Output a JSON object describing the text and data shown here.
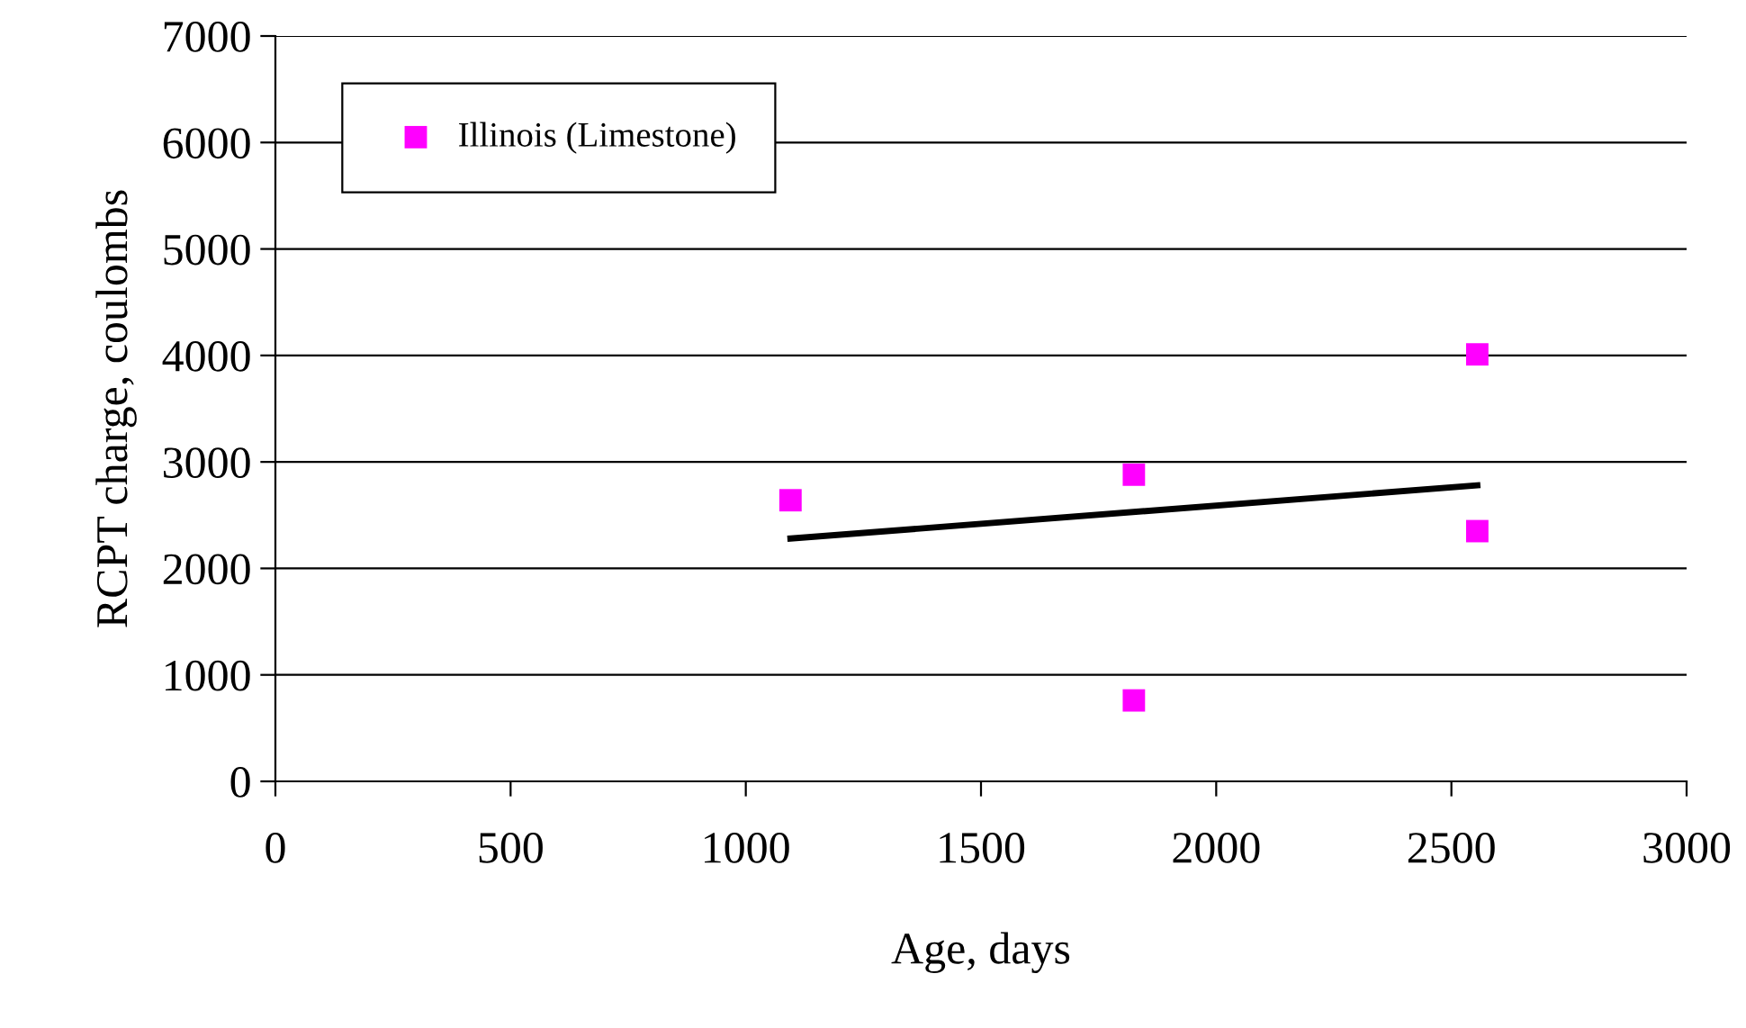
{
  "chart_data": {
    "type": "scatter",
    "xlabel": "Age, days",
    "ylabel": "RCPT charge, coulombs",
    "xlim": [
      0,
      3000
    ],
    "xticks": [
      0,
      500,
      1000,
      1500,
      2000,
      2500,
      3000
    ],
    "ylim": [
      0,
      7000
    ],
    "yticks": [
      0,
      1000,
      2000,
      3000,
      4000,
      5000,
      6000,
      7000
    ],
    "grid": "y",
    "legend": "top left",
    "series": [
      {
        "name": "Illinois (Limestone)",
        "color": "#ff00ff",
        "marker": "square",
        "x": [
          1095,
          1825,
          1825,
          2555,
          2555
        ],
        "values": [
          2640,
          2880,
          760,
          4010,
          2350
        ]
      },
      {
        "color": "#000000",
        "type": "line",
        "x": [
          1095,
          2555
        ],
        "values": [
          2280,
          2780
        ]
      }
    ]
  }
}
